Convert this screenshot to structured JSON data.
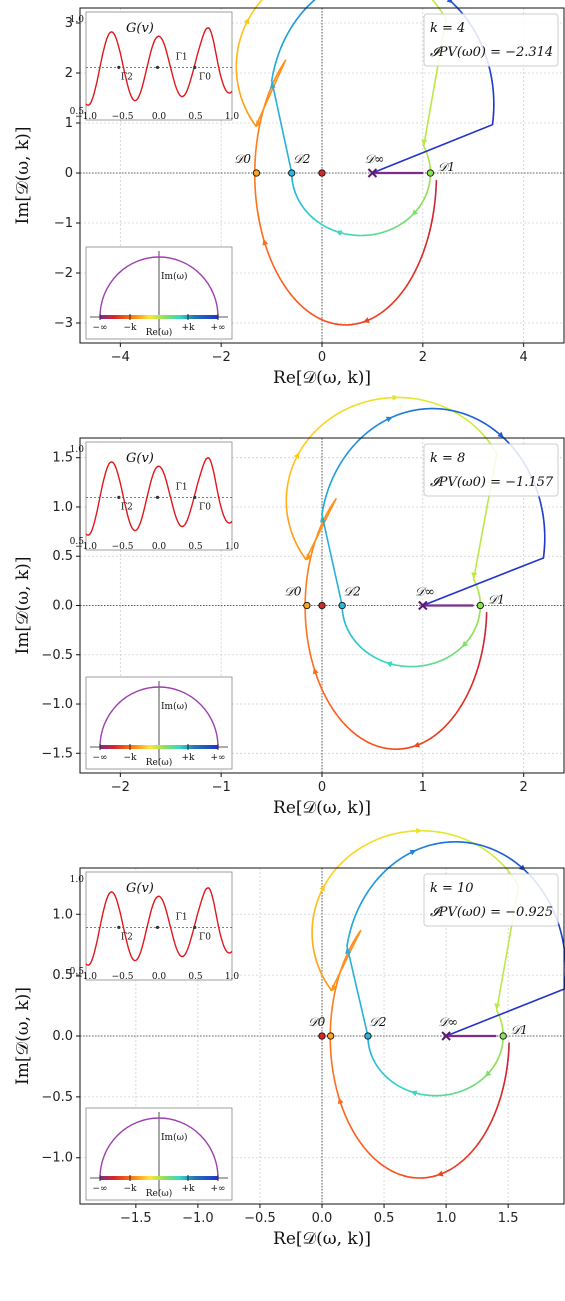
{
  "chart_data": [
    {
      "type": "line",
      "xlabel": "Re[𝒟(ω, k)]",
      "ylabel": "Im[𝒟(ω, k)]",
      "xlim": [
        -4.8,
        4.8
      ],
      "ylim": [
        -3.4,
        3.3
      ],
      "xticks": [
        -4,
        -2,
        0,
        2,
        4
      ],
      "xticklabels": [
        "−4",
        "−2",
        "0",
        "2",
        "4"
      ],
      "yticks": [
        -3,
        -2,
        -1,
        0,
        1,
        2,
        3
      ],
      "yticklabels": [
        "−3",
        "−2",
        "−1",
        "0",
        "1",
        "2",
        "3"
      ],
      "grid": true,
      "annotation": {
        "k_text": "k = 4",
        "ipv_text": "𝓘PV(ω0) = −2.314"
      },
      "points": [
        {
          "label": "𝒟0",
          "x": -1.3,
          "y": 0,
          "color": "#f5a623"
        },
        {
          "label": "𝒟2",
          "x": -0.6,
          "y": 0,
          "color": "#29b6d8"
        },
        {
          "label": "",
          "x": 0,
          "y": 0,
          "color": "#d62728"
        },
        {
          "label": "𝒟∞",
          "x": 1.0,
          "y": 0,
          "color": "#7b2d8e"
        },
        {
          "label": "𝒟1",
          "x": 2.15,
          "y": 0,
          "color": "#8be05a"
        }
      ],
      "curve": {
        "a": 0.5,
        "r1": 2.75,
        "c1y": 2.5,
        "r2": 3.1,
        "c2y": 0.0,
        "inner_r": 1.25,
        "inner_cy": 0.0
      }
    },
    {
      "type": "line",
      "xlabel": "Re[𝒟(ω, k)]",
      "ylabel": "Im[𝒟(ω, k)]",
      "xlim": [
        -2.4,
        2.4
      ],
      "ylim": [
        -1.7,
        1.7
      ],
      "xticks": [
        -2,
        -1,
        0,
        1,
        2
      ],
      "xticklabels": [
        "−2",
        "−1",
        "0",
        "1",
        "2"
      ],
      "yticks": [
        -1.5,
        -1.0,
        -0.5,
        0.0,
        0.5,
        1.0,
        1.5
      ],
      "yticklabels": [
        "−1.5",
        "−1.0",
        "−0.5",
        "0.0",
        "0.5",
        "1.0",
        "1.5"
      ],
      "grid": true,
      "annotation": {
        "k_text": "k = 8",
        "ipv_text": "𝓘PV(ω0) = −1.157"
      },
      "points": [
        {
          "label": "𝒟0",
          "x": -0.15,
          "y": 0,
          "color": "#f5a623"
        },
        {
          "label": "𝒟2",
          "x": 0.2,
          "y": 0,
          "color": "#29b6d8"
        },
        {
          "label": "",
          "x": 0,
          "y": 0,
          "color": "#d62728"
        },
        {
          "label": "𝒟∞",
          "x": 1.0,
          "y": 0,
          "color": "#7b2d8e"
        },
        {
          "label": "𝒟1",
          "x": 1.57,
          "y": 0,
          "color": "#8be05a"
        }
      ],
      "curve": {
        "a": 0.75,
        "r1": 1.38,
        "c1y": 1.25,
        "r2": 1.55,
        "c2y": 0.0,
        "inner_r": 0.62,
        "inner_cy": 0.0
      }
    },
    {
      "type": "line",
      "xlabel": "Re[𝒟(ω, k)]",
      "ylabel": "Im[𝒟(ω, k)]",
      "xlim": [
        -1.95,
        1.95
      ],
      "ylim": [
        -1.38,
        1.38
      ],
      "xticks": [
        -1.5,
        -1.0,
        -0.5,
        0.0,
        0.5,
        1.0,
        1.5
      ],
      "xticklabels": [
        "−1.5",
        "−1.0",
        "−0.5",
        "0.0",
        "0.5",
        "1.0",
        "1.5"
      ],
      "yticks": [
        -1.0,
        -0.5,
        0.0,
        0.5,
        1.0
      ],
      "yticklabels": [
        "−1.0",
        "−0.5",
        "0.0",
        "0.5",
        "1.0"
      ],
      "grid": true,
      "annotation": {
        "k_text": "k = 10",
        "ipv_text": "𝓘PV(ω0) = −0.925"
      },
      "points": [
        {
          "label": "",
          "x": 0,
          "y": 0,
          "color": "#d62728"
        },
        {
          "label": "𝒟0",
          "x": 0.07,
          "y": 0,
          "color": "#f5a623"
        },
        {
          "label": "𝒟2",
          "x": 0.37,
          "y": 0,
          "color": "#29b6d8"
        },
        {
          "label": "𝒟∞",
          "x": 1.0,
          "y": 0,
          "color": "#7b2d8e"
        },
        {
          "label": "𝒟1",
          "x": 1.46,
          "y": 0,
          "color": "#8be05a"
        }
      ],
      "curve": {
        "a": 0.8,
        "r1": 1.1,
        "c1y": 1.0,
        "r2": 1.24,
        "c2y": 0.0,
        "inner_r": 0.49,
        "inner_cy": 0.0
      }
    }
  ],
  "inset_G": {
    "title": "G(v)",
    "xticks": [
      "−1.0",
      "−0.5",
      "0.0",
      "0.5",
      "1.0"
    ],
    "yticks": [
      "0.5",
      "1.0"
    ],
    "labels": [
      "Γ2",
      "Γ1",
      "Γ0"
    ]
  },
  "inset_contour": {
    "label": "Im(ω)",
    "xlabel": "Re(ω)",
    "ticks": [
      "−∞",
      "−k",
      "+k",
      "+∞"
    ]
  },
  "colors": {
    "gridline": "#cccccc",
    "G_curve": "#e0181b",
    "contour_arc": "#9b3fae"
  }
}
